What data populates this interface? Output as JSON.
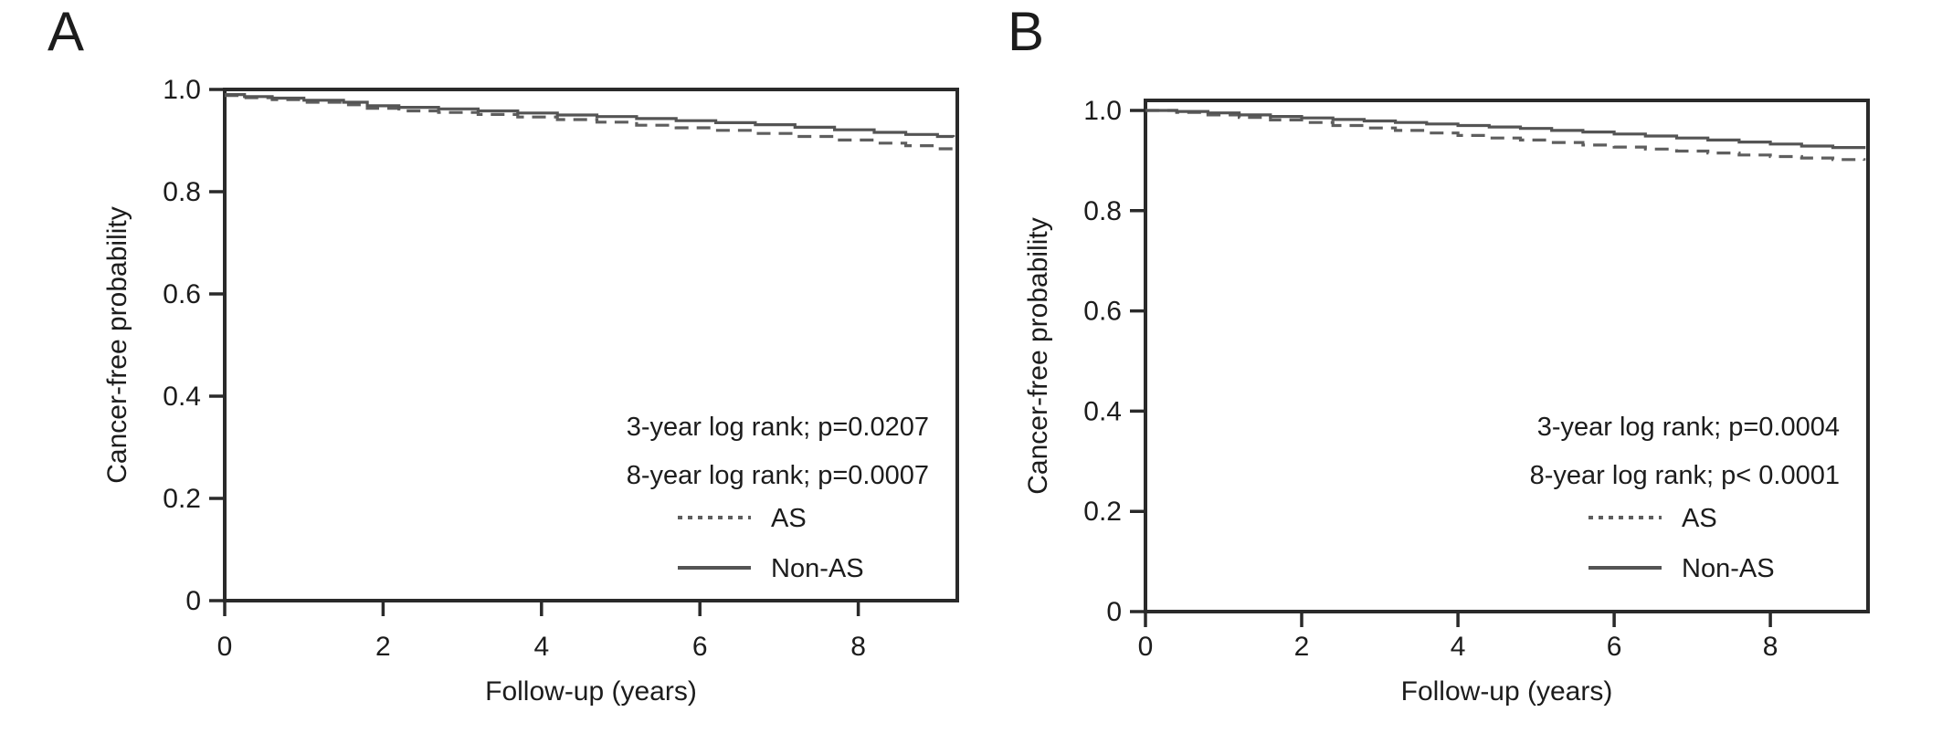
{
  "figure": {
    "background": "#ffffff",
    "description": "Two Kaplan-Meier cancer-free survival panels comparing AS vs Non-AS"
  },
  "colors": {
    "frame": "#2a2a2a",
    "text": "#1c1c1c",
    "solid_line": "#545454",
    "dashed_line": "#5e5e5e",
    "background": "#ffffff"
  },
  "chart_data": [
    {
      "type": "line",
      "subtype": "kaplan-meier-step",
      "panel_label": "A",
      "xlabel": "Follow-up (years)",
      "ylabel": "Cancer-free probability",
      "xlim": [
        0,
        9.25
      ],
      "ylim": [
        0,
        1.0
      ],
      "grid": false,
      "x_ticks": [
        0,
        2,
        4,
        6,
        8
      ],
      "x_tick_labels": [
        "0",
        "2",
        "4",
        "6",
        "8"
      ],
      "y_ticks": [
        0,
        0.2,
        0.4,
        0.6,
        0.8,
        1.0
      ],
      "y_tick_labels": [
        "0",
        "0.2",
        "0.4",
        "0.6",
        "0.8",
        "1.0"
      ],
      "annotations": [
        "3-year log rank; p=0.0207",
        "8-year log rank; p=0.0007"
      ],
      "legend_position": "inside-lower-right",
      "legend": [
        {
          "label": "AS",
          "style": "dashed"
        },
        {
          "label": "Non-AS",
          "style": "solid"
        }
      ],
      "series": [
        {
          "name": "AS",
          "style": "dashed",
          "points": [
            [
              0,
              0.988
            ],
            [
              0.25,
              0.984
            ],
            [
              0.6,
              0.98
            ],
            [
              1,
              0.975
            ],
            [
              1.5,
              0.97
            ],
            [
              1.8,
              0.963
            ],
            [
              2.2,
              0.958
            ],
            [
              2.7,
              0.955
            ],
            [
              3.2,
              0.951
            ],
            [
              3.7,
              0.946
            ],
            [
              4.2,
              0.941
            ],
            [
              4.7,
              0.936
            ],
            [
              5.2,
              0.93
            ],
            [
              5.7,
              0.925
            ],
            [
              6.2,
              0.92
            ],
            [
              6.7,
              0.914
            ],
            [
              7.2,
              0.908
            ],
            [
              7.7,
              0.901
            ],
            [
              8.2,
              0.895
            ],
            [
              8.6,
              0.89
            ],
            [
              9.0,
              0.884
            ],
            [
              9.2,
              0.883
            ]
          ]
        },
        {
          "name": "Non-AS",
          "style": "solid",
          "points": [
            [
              0,
              0.99
            ],
            [
              0.25,
              0.986
            ],
            [
              0.6,
              0.983
            ],
            [
              1,
              0.979
            ],
            [
              1.5,
              0.975
            ],
            [
              1.8,
              0.968
            ],
            [
              2.2,
              0.965
            ],
            [
              2.7,
              0.962
            ],
            [
              3.2,
              0.958
            ],
            [
              3.7,
              0.954
            ],
            [
              4.2,
              0.95
            ],
            [
              4.7,
              0.947
            ],
            [
              5.2,
              0.943
            ],
            [
              5.7,
              0.939
            ],
            [
              6.2,
              0.935
            ],
            [
              6.7,
              0.931
            ],
            [
              7.2,
              0.926
            ],
            [
              7.7,
              0.921
            ],
            [
              8.2,
              0.916
            ],
            [
              8.6,
              0.912
            ],
            [
              9.0,
              0.908
            ],
            [
              9.2,
              0.907
            ]
          ]
        }
      ]
    },
    {
      "type": "line",
      "subtype": "kaplan-meier-step",
      "panel_label": "B",
      "xlabel": "Follow-up (years)",
      "ylabel": "Cancer-free probability",
      "xlim": [
        0,
        9.25
      ],
      "ylim": [
        0,
        1.02
      ],
      "grid": false,
      "x_ticks": [
        0,
        2,
        4,
        6,
        8
      ],
      "x_tick_labels": [
        "0",
        "2",
        "4",
        "6",
        "8"
      ],
      "y_ticks": [
        0,
        0.2,
        0.4,
        0.6,
        0.8,
        1.0
      ],
      "y_tick_labels": [
        "0",
        "0.2",
        "0.4",
        "0.6",
        "0.8",
        "1.0"
      ],
      "annotations": [
        "3-year log rank; p=0.0004",
        "8-year log rank; p< 0.0001"
      ],
      "legend_position": "inside-lower-right",
      "legend": [
        {
          "label": "AS",
          "style": "dashed"
        },
        {
          "label": "Non-AS",
          "style": "solid"
        }
      ],
      "series": [
        {
          "name": "AS",
          "style": "dashed",
          "points": [
            [
              0,
              1.0
            ],
            [
              0.4,
              0.996
            ],
            [
              0.8,
              0.991
            ],
            [
              1.2,
              0.986
            ],
            [
              1.6,
              0.981
            ],
            [
              2.0,
              0.976
            ],
            [
              2.4,
              0.97
            ],
            [
              2.8,
              0.965
            ],
            [
              3.2,
              0.96
            ],
            [
              3.6,
              0.955
            ],
            [
              4.0,
              0.95
            ],
            [
              4.4,
              0.945
            ],
            [
              4.8,
              0.941
            ],
            [
              5.2,
              0.936
            ],
            [
              5.6,
              0.931
            ],
            [
              6.0,
              0.927
            ],
            [
              6.4,
              0.923
            ],
            [
              6.8,
              0.919
            ],
            [
              7.2,
              0.915
            ],
            [
              7.6,
              0.911
            ],
            [
              8.0,
              0.908
            ],
            [
              8.4,
              0.905
            ],
            [
              8.8,
              0.902
            ],
            [
              9.2,
              0.9
            ]
          ]
        },
        {
          "name": "Non-AS",
          "style": "solid",
          "points": [
            [
              0,
              1.0
            ],
            [
              0.4,
              0.998
            ],
            [
              0.8,
              0.995
            ],
            [
              1.2,
              0.991
            ],
            [
              1.6,
              0.988
            ],
            [
              2.0,
              0.985
            ],
            [
              2.4,
              0.982
            ],
            [
              2.8,
              0.979
            ],
            [
              3.2,
              0.976
            ],
            [
              3.6,
              0.973
            ],
            [
              4.0,
              0.97
            ],
            [
              4.4,
              0.967
            ],
            [
              4.8,
              0.964
            ],
            [
              5.2,
              0.96
            ],
            [
              5.6,
              0.957
            ],
            [
              6.0,
              0.953
            ],
            [
              6.4,
              0.949
            ],
            [
              6.8,
              0.945
            ],
            [
              7.2,
              0.941
            ],
            [
              7.6,
              0.937
            ],
            [
              8.0,
              0.933
            ],
            [
              8.4,
              0.929
            ],
            [
              8.8,
              0.926
            ],
            [
              9.2,
              0.923
            ]
          ]
        }
      ]
    }
  ]
}
